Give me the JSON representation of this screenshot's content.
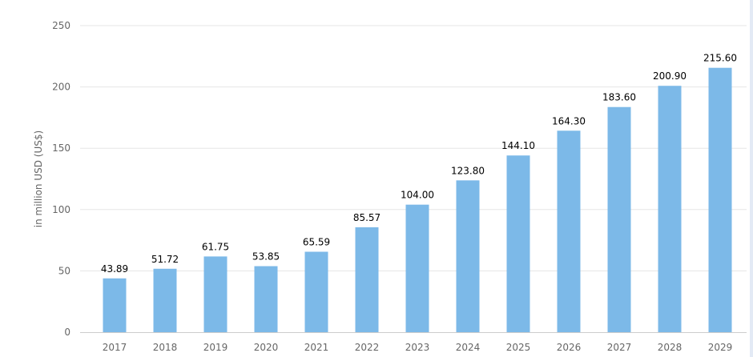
{
  "chart_data": {
    "type": "bar",
    "ylabel": "in million USD (US$)",
    "xlabel": "",
    "ylim": [
      0,
      250
    ],
    "yticks": [
      0,
      50,
      100,
      150,
      200,
      250
    ],
    "grid": true,
    "categories": [
      "2017",
      "2018",
      "2019",
      "2020",
      "2021",
      "2022",
      "2023",
      "2024",
      "2025",
      "2026",
      "2027",
      "2028",
      "2029"
    ],
    "values": [
      43.89,
      51.72,
      61.75,
      53.85,
      65.59,
      85.57,
      104.0,
      123.8,
      144.1,
      164.3,
      183.6,
      200.9,
      215.6
    ],
    "value_labels": [
      "43.89",
      "51.72",
      "61.75",
      "53.85",
      "65.59",
      "85.57",
      "104.00",
      "123.80",
      "144.10",
      "164.30",
      "183.60",
      "200.90",
      "215.60"
    ],
    "bar_color": "#7cb9e8",
    "grid_color": "#e6e6e6"
  }
}
